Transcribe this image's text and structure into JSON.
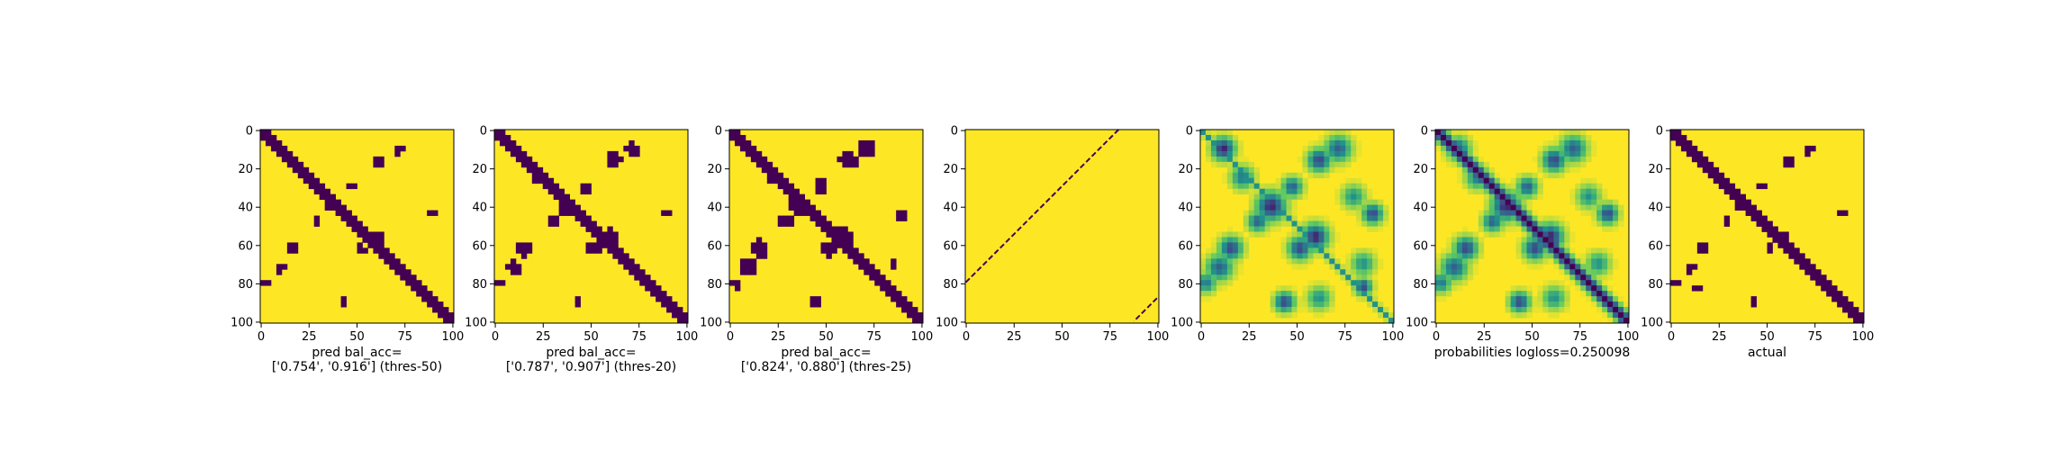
{
  "colors": {
    "background": "#ffffff",
    "contact": "#440154",
    "no_contact": "#fde725",
    "colormap": "viridis",
    "axes_frame": "#000000"
  },
  "chart_data": [
    {
      "type": "heatmap",
      "panel": "pred-thres-50",
      "xlabel": [
        "pred bal_acc=",
        "['0.754', '0.916'] (thres-50)"
      ],
      "xlim": [
        0,
        101
      ],
      "ylim": [
        101,
        0
      ],
      "xticks": [
        "0",
        "25",
        "50",
        "75",
        "100"
      ],
      "yticks": [
        "0",
        "20",
        "40",
        "60",
        "80",
        "100"
      ],
      "matrix_size": 101,
      "value_range": [
        0,
        1
      ],
      "band_width": 2.6,
      "patches": [
        {
          "r": 16,
          "c": 62,
          "s": 3.0,
          "w": 1.0
        },
        {
          "r": 62,
          "c": 16,
          "s": 3.0,
          "w": 1.0
        },
        {
          "r": 40,
          "c": 37,
          "s": 3.0,
          "w": 1.0
        },
        {
          "r": 30,
          "c": 48,
          "s": 2.0,
          "w": 1.0
        },
        {
          "r": 48,
          "c": 30,
          "s": 2.0,
          "w": 1.0
        },
        {
          "r": 56,
          "c": 60,
          "s": 3.0,
          "w": 1.0
        },
        {
          "r": 62,
          "c": 52,
          "s": 2.5,
          "w": 1.0
        },
        {
          "r": 72,
          "c": 10,
          "s": 2.5,
          "w": 1.0
        },
        {
          "r": 10,
          "c": 72,
          "s": 2.5,
          "w": 1.0
        },
        {
          "r": 90,
          "c": 44,
          "s": 1.5,
          "w": 1.0
        },
        {
          "r": 44,
          "c": 90,
          "s": 1.5,
          "w": 1.0
        },
        {
          "r": 80,
          "c": 3,
          "s": 1.5,
          "w": 1.0
        }
      ]
    },
    {
      "type": "heatmap",
      "panel": "pred-thres-20",
      "xlabel": [
        "pred bal_acc=",
        "['0.787', '0.907'] (thres-20)"
      ],
      "xlim": [
        0,
        101
      ],
      "ylim": [
        101,
        0
      ],
      "xticks": [
        "0",
        "25",
        "50",
        "75",
        "100"
      ],
      "yticks": [
        "0",
        "20",
        "40",
        "60",
        "80",
        "100"
      ],
      "matrix_size": 101,
      "value_range": [
        0,
        1
      ],
      "band_width": 3.0,
      "patches": [
        {
          "r": 16,
          "c": 62,
          "s": 3.6,
          "w": 1.0
        },
        {
          "r": 62,
          "c": 16,
          "s": 3.6,
          "w": 1.0
        },
        {
          "r": 40,
          "c": 37,
          "s": 3.6,
          "w": 1.0
        },
        {
          "r": 30,
          "c": 48,
          "s": 2.6,
          "w": 1.0
        },
        {
          "r": 48,
          "c": 30,
          "s": 2.6,
          "w": 1.0
        },
        {
          "r": 56,
          "c": 60,
          "s": 3.6,
          "w": 1.0
        },
        {
          "r": 62,
          "c": 52,
          "s": 3.0,
          "w": 1.0
        },
        {
          "r": 72,
          "c": 10,
          "s": 3.2,
          "w": 1.0
        },
        {
          "r": 10,
          "c": 72,
          "s": 3.2,
          "w": 1.0
        },
        {
          "r": 90,
          "c": 44,
          "s": 2.0,
          "w": 1.0
        },
        {
          "r": 44,
          "c": 90,
          "s": 2.0,
          "w": 1.0
        },
        {
          "r": 25,
          "c": 22,
          "s": 2.0,
          "w": 1.0
        },
        {
          "r": 80,
          "c": 3,
          "s": 2.0,
          "w": 1.0
        }
      ]
    },
    {
      "type": "heatmap",
      "panel": "pred-thres-25",
      "xlabel": [
        "pred bal_acc=",
        "['0.824', '0.880'] (thres-25)"
      ],
      "xlim": [
        0,
        101
      ],
      "ylim": [
        101,
        0
      ],
      "xticks": [
        "0",
        "25",
        "50",
        "75",
        "100"
      ],
      "yticks": [
        "0",
        "20",
        "40",
        "60",
        "80",
        "100"
      ],
      "matrix_size": 101,
      "value_range": [
        0,
        1
      ],
      "band_width": 3.4,
      "patches": [
        {
          "r": 16,
          "c": 62,
          "s": 4.2,
          "w": 1.0
        },
        {
          "r": 62,
          "c": 16,
          "s": 4.2,
          "w": 1.0
        },
        {
          "r": 40,
          "c": 37,
          "s": 4.5,
          "w": 1.0
        },
        {
          "r": 30,
          "c": 48,
          "s": 3.2,
          "w": 1.0
        },
        {
          "r": 48,
          "c": 30,
          "s": 3.2,
          "w": 1.0
        },
        {
          "r": 56,
          "c": 60,
          "s": 4.2,
          "w": 1.0
        },
        {
          "r": 62,
          "c": 52,
          "s": 3.6,
          "w": 1.0
        },
        {
          "r": 72,
          "c": 10,
          "s": 3.8,
          "w": 1.0
        },
        {
          "r": 10,
          "c": 72,
          "s": 3.8,
          "w": 1.0
        },
        {
          "r": 90,
          "c": 44,
          "s": 2.6,
          "w": 1.0
        },
        {
          "r": 44,
          "c": 90,
          "s": 2.6,
          "w": 1.0
        },
        {
          "r": 25,
          "c": 22,
          "s": 2.6,
          "w": 1.0
        },
        {
          "r": 80,
          "c": 3,
          "s": 2.6,
          "w": 1.0
        },
        {
          "r": 70,
          "c": 85,
          "s": 2.0,
          "w": 1.0
        }
      ]
    },
    {
      "type": "heatmap",
      "panel": "line-panel",
      "xlabel": [],
      "xlim": [
        0,
        101
      ],
      "ylim": [
        101,
        0
      ],
      "xticks": [
        "0",
        "25",
        "50",
        "75",
        "100"
      ],
      "yticks": [
        "0",
        "20",
        "40",
        "60",
        "80",
        "100"
      ],
      "matrix_size": 101,
      "value_range": [
        0,
        1
      ],
      "band_width": 0,
      "patches": [],
      "lines": [
        {
          "from": [
            0,
            80
          ],
          "to": [
            80,
            0
          ]
        },
        {
          "from": [
            88,
            100
          ],
          "to": [
            100,
            88
          ]
        }
      ]
    },
    {
      "type": "heatmap",
      "panel": "probabilities-a",
      "xlabel": [],
      "xlim": [
        0,
        101
      ],
      "ylim": [
        101,
        0
      ],
      "xticks": [
        "0",
        "25",
        "50",
        "75",
        "100"
      ],
      "yticks": [
        "0",
        "20",
        "40",
        "60",
        "80",
        "100"
      ],
      "matrix_size": 101,
      "value_range": [
        0,
        1
      ],
      "continuous": true,
      "band_width": 1.5,
      "band_strength": 0.5,
      "patches": [
        {
          "r": 10,
          "c": 12,
          "s": 4.0,
          "w": 0.9
        },
        {
          "r": 16,
          "c": 62,
          "s": 4.0,
          "w": 0.8
        },
        {
          "r": 62,
          "c": 16,
          "s": 4.0,
          "w": 0.8
        },
        {
          "r": 40,
          "c": 37,
          "s": 5.0,
          "w": 0.9
        },
        {
          "r": 30,
          "c": 48,
          "s": 3.5,
          "w": 0.7
        },
        {
          "r": 48,
          "c": 30,
          "s": 3.5,
          "w": 0.7
        },
        {
          "r": 56,
          "c": 60,
          "s": 4.5,
          "w": 0.9
        },
        {
          "r": 62,
          "c": 52,
          "s": 4.0,
          "w": 0.8
        },
        {
          "r": 72,
          "c": 10,
          "s": 4.5,
          "w": 0.7
        },
        {
          "r": 10,
          "c": 72,
          "s": 4.5,
          "w": 0.7
        },
        {
          "r": 90,
          "c": 44,
          "s": 3.5,
          "w": 0.8
        },
        {
          "r": 44,
          "c": 90,
          "s": 3.5,
          "w": 0.8
        },
        {
          "r": 25,
          "c": 22,
          "s": 4.0,
          "w": 0.6
        },
        {
          "r": 80,
          "c": 3,
          "s": 3.5,
          "w": 0.6
        },
        {
          "r": 82,
          "c": 85,
          "s": 3.0,
          "w": 0.8
        },
        {
          "r": 70,
          "c": 85,
          "s": 4.0,
          "w": 0.5
        },
        {
          "r": 88,
          "c": 62,
          "s": 4.0,
          "w": 0.5
        },
        {
          "r": 35,
          "c": 80,
          "s": 4.0,
          "w": 0.5
        }
      ]
    },
    {
      "type": "heatmap",
      "panel": "probabilities-b",
      "xlabel": [
        "probabilities logloss=0.250098"
      ],
      "xlim": [
        0,
        101
      ],
      "ylim": [
        101,
        0
      ],
      "xticks": [
        "0",
        "25",
        "50",
        "75",
        "100"
      ],
      "yticks": [
        "0",
        "20",
        "40",
        "60",
        "80",
        "100"
      ],
      "matrix_size": 101,
      "value_range": [
        0,
        1
      ],
      "continuous": true,
      "band_width": 3.2,
      "band_strength": 1.0,
      "patches": [
        {
          "r": 10,
          "c": 12,
          "s": 4.0,
          "w": 0.7
        },
        {
          "r": 16,
          "c": 62,
          "s": 4.0,
          "w": 0.8
        },
        {
          "r": 62,
          "c": 16,
          "s": 4.0,
          "w": 0.8
        },
        {
          "r": 40,
          "c": 37,
          "s": 5.0,
          "w": 0.9
        },
        {
          "r": 30,
          "c": 48,
          "s": 3.5,
          "w": 0.7
        },
        {
          "r": 48,
          "c": 30,
          "s": 3.5,
          "w": 0.7
        },
        {
          "r": 56,
          "c": 60,
          "s": 4.5,
          "w": 0.9
        },
        {
          "r": 62,
          "c": 52,
          "s": 4.0,
          "w": 0.8
        },
        {
          "r": 72,
          "c": 10,
          "s": 4.5,
          "w": 0.7
        },
        {
          "r": 10,
          "c": 72,
          "s": 4.5,
          "w": 0.7
        },
        {
          "r": 90,
          "c": 44,
          "s": 3.5,
          "w": 0.8
        },
        {
          "r": 44,
          "c": 90,
          "s": 3.5,
          "w": 0.8
        },
        {
          "r": 25,
          "c": 22,
          "s": 4.0,
          "w": 0.6
        },
        {
          "r": 80,
          "c": 3,
          "s": 3.5,
          "w": 0.6
        },
        {
          "r": 70,
          "c": 85,
          "s": 4.0,
          "w": 0.5
        },
        {
          "r": 88,
          "c": 62,
          "s": 4.0,
          "w": 0.5
        },
        {
          "r": 35,
          "c": 80,
          "s": 4.0,
          "w": 0.5
        }
      ]
    },
    {
      "type": "heatmap",
      "panel": "actual",
      "xlabel": [
        "actual"
      ],
      "xlim": [
        0,
        101
      ],
      "ylim": [
        101,
        0
      ],
      "xticks": [
        "0",
        "25",
        "50",
        "75",
        "100"
      ],
      "yticks": [
        "0",
        "20",
        "40",
        "60",
        "80",
        "100"
      ],
      "matrix_size": 101,
      "value_range": [
        0,
        1
      ],
      "band_width": 2.4,
      "patches": [
        {
          "r": 16,
          "c": 62,
          "s": 2.4,
          "w": 1.0
        },
        {
          "r": 62,
          "c": 16,
          "s": 2.4,
          "w": 1.0
        },
        {
          "r": 40,
          "c": 37,
          "s": 2.6,
          "w": 1.0
        },
        {
          "r": 30,
          "c": 48,
          "s": 1.8,
          "w": 1.0
        },
        {
          "r": 48,
          "c": 30,
          "s": 1.8,
          "w": 1.0
        },
        {
          "r": 56,
          "c": 60,
          "s": 2.6,
          "w": 1.0
        },
        {
          "r": 62,
          "c": 52,
          "s": 2.2,
          "w": 1.0
        },
        {
          "r": 72,
          "c": 10,
          "s": 2.4,
          "w": 1.0
        },
        {
          "r": 10,
          "c": 72,
          "s": 2.4,
          "w": 1.0
        },
        {
          "r": 90,
          "c": 44,
          "s": 1.6,
          "w": 1.0
        },
        {
          "r": 44,
          "c": 90,
          "s": 1.6,
          "w": 1.0
        },
        {
          "r": 82,
          "c": 14,
          "s": 1.8,
          "w": 1.0
        },
        {
          "r": 80,
          "c": 3,
          "s": 1.4,
          "w": 1.0
        }
      ]
    }
  ]
}
